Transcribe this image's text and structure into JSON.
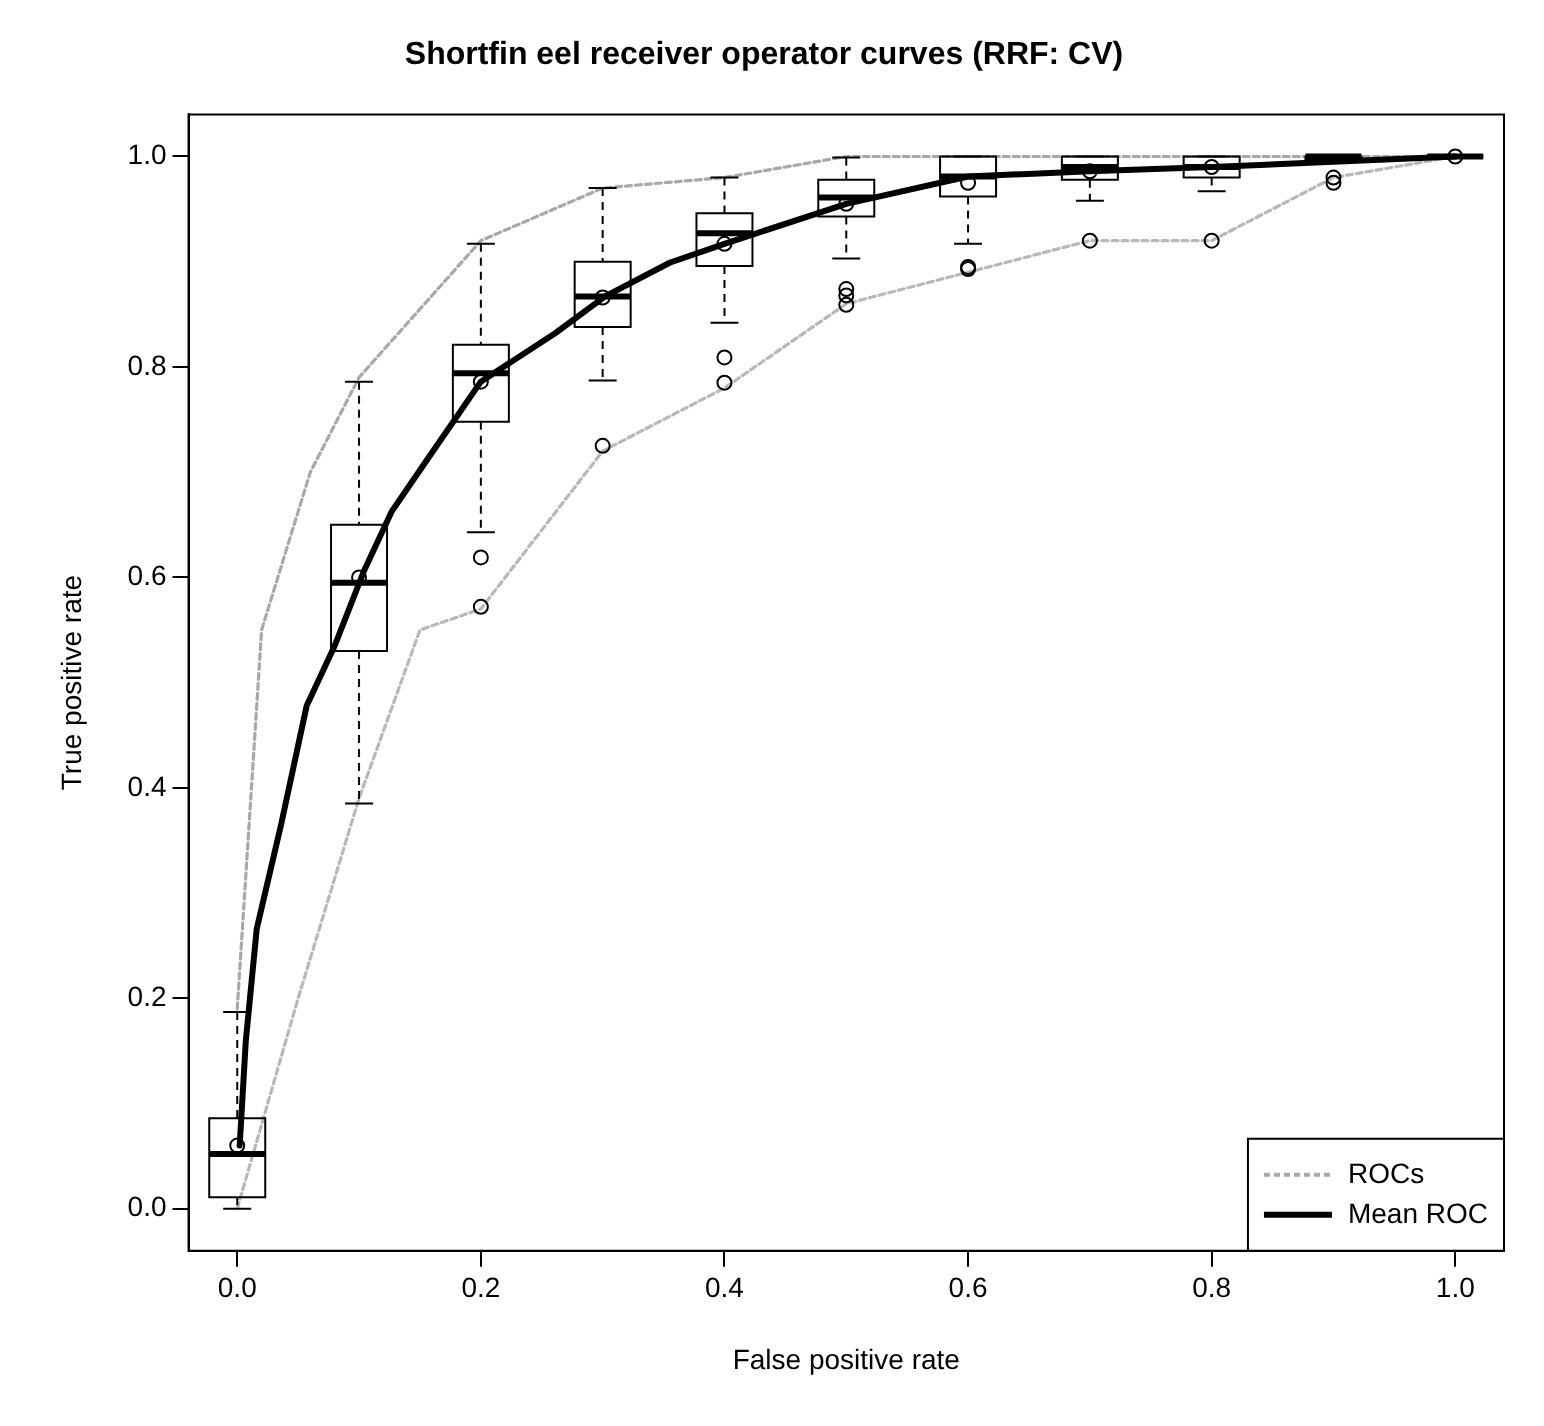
{
  "chart_data": {
    "type": "line",
    "title": "Shortfin eel receiver operator curves (RRF: CV)",
    "xlabel": "False positive rate",
    "ylabel": "True positive rate",
    "xlim": [
      -0.04,
      1.04
    ],
    "ylim": [
      -0.04,
      1.04
    ],
    "xticks": [
      {
        "value": 0,
        "label": "0.0"
      },
      0.2,
      0.4,
      0.6,
      0.8,
      {
        "value": 1,
        "label": "1.0"
      }
    ],
    "yticks": [
      {
        "value": 0,
        "label": "0.0"
      },
      0.2,
      0.4,
      0.6,
      0.8,
      {
        "value": 1,
        "label": "1.0"
      }
    ],
    "grid": false,
    "legend": "bottom right",
    "marker": "none",
    "series": [
      {
        "name": "ROCs",
        "type": "line",
        "line_style": "dotted",
        "color": "#a8a8a8",
        "x": [
          0,
          0.02,
          0.06,
          0.1,
          0.2,
          0.3,
          0.4,
          0.5,
          1
        ],
        "values": [
          0.19,
          0.55,
          0.7,
          0.79,
          0.92,
          0.97,
          0.98,
          1,
          1
        ]
      },
      {
        "type": "line",
        "line_style": "dotted",
        "color": "#b8b8b8",
        "x": [
          0,
          0.05,
          0.1,
          0.15,
          0.2,
          0.3,
          0.4,
          0.5,
          0.6,
          0.7,
          0.8,
          0.9,
          1
        ],
        "values": [
          0,
          0.2,
          0.39,
          0.55,
          0.57,
          0.72,
          0.78,
          0.86,
          0.89,
          0.92,
          0.92,
          0.98,
          1
        ]
      },
      {
        "type": "box",
        "color": "#000000",
        "x": [
          0,
          0.1,
          0.2,
          0.3,
          0.4,
          0.5,
          0.6,
          0.7,
          0.8,
          0.9,
          1
        ],
        "boxes": [
          {
            "low": 0,
            "q1": 0.011,
            "median": 0.052,
            "q3": 0.086,
            "high": 0.187,
            "mean": 0.06
          },
          {
            "low": 0.385,
            "q1": 0.53,
            "median": 0.595,
            "q3": 0.65,
            "high": 0.786,
            "mean": 0.6
          },
          {
            "low": 0.643,
            "q1": 0.748,
            "median": 0.794,
            "q3": 0.821,
            "high": 0.917,
            "mean": 0.786,
            "outliers": [
              0.619,
              0.572
            ]
          },
          {
            "low": 0.787,
            "q1": 0.838,
            "median": 0.867,
            "q3": 0.9,
            "high": 0.97,
            "mean": 0.866,
            "outliers": [
              0.725
            ]
          },
          {
            "low": 0.842,
            "q1": 0.896,
            "median": 0.927,
            "q3": 0.946,
            "high": 0.98,
            "mean": 0.917,
            "outliers": [
              0.809,
              0.785
            ]
          },
          {
            "low": 0.903,
            "q1": 0.943,
            "median": 0.961,
            "q3": 0.978,
            "high": 0.999,
            "mean": 0.955,
            "outliers": [
              0.874,
              0.868,
              0.859
            ]
          },
          {
            "low": 0.917,
            "q1": 0.962,
            "median": 0.981,
            "q3": 1,
            "high": 1,
            "mean": 0.975,
            "outliers": [
              0.895,
              0.893
            ]
          },
          {
            "low": 0.958,
            "q1": 0.978,
            "median": 0.99,
            "q3": 1,
            "high": 1,
            "mean": 0.986,
            "outliers": [
              0.92
            ]
          },
          {
            "low": 0.967,
            "q1": 0.98,
            "median": 0.99,
            "q3": 1,
            "high": 1,
            "mean": 0.99,
            "outliers": [
              0.92
            ]
          },
          {
            "low": 0.995,
            "q1": 0.997,
            "median": 1,
            "q3": 1,
            "high": 1,
            "outliers": [
              0.98,
              0.975
            ]
          },
          {
            "low": 1,
            "q1": 1,
            "median": 1,
            "q3": 1,
            "high": 1,
            "mean": 1
          }
        ]
      },
      {
        "name": "Mean ROC",
        "line_style": "solid",
        "color": "#000000",
        "x": [
          0.002,
          0.007,
          0.016,
          0.036,
          0.057,
          0.08,
          0.104,
          0.127,
          0.156,
          0.2,
          0.261,
          0.302,
          0.355,
          0.4,
          0.5,
          0.6,
          0.7,
          0.8,
          0.9,
          1
        ],
        "values": [
          0.06,
          0.159,
          0.266,
          0.365,
          0.478,
          0.535,
          0.606,
          0.663,
          0.712,
          0.786,
          0.832,
          0.867,
          0.899,
          0.917,
          0.955,
          0.981,
          0.986,
          0.99,
          0.995,
          1
        ]
      }
    ]
  }
}
